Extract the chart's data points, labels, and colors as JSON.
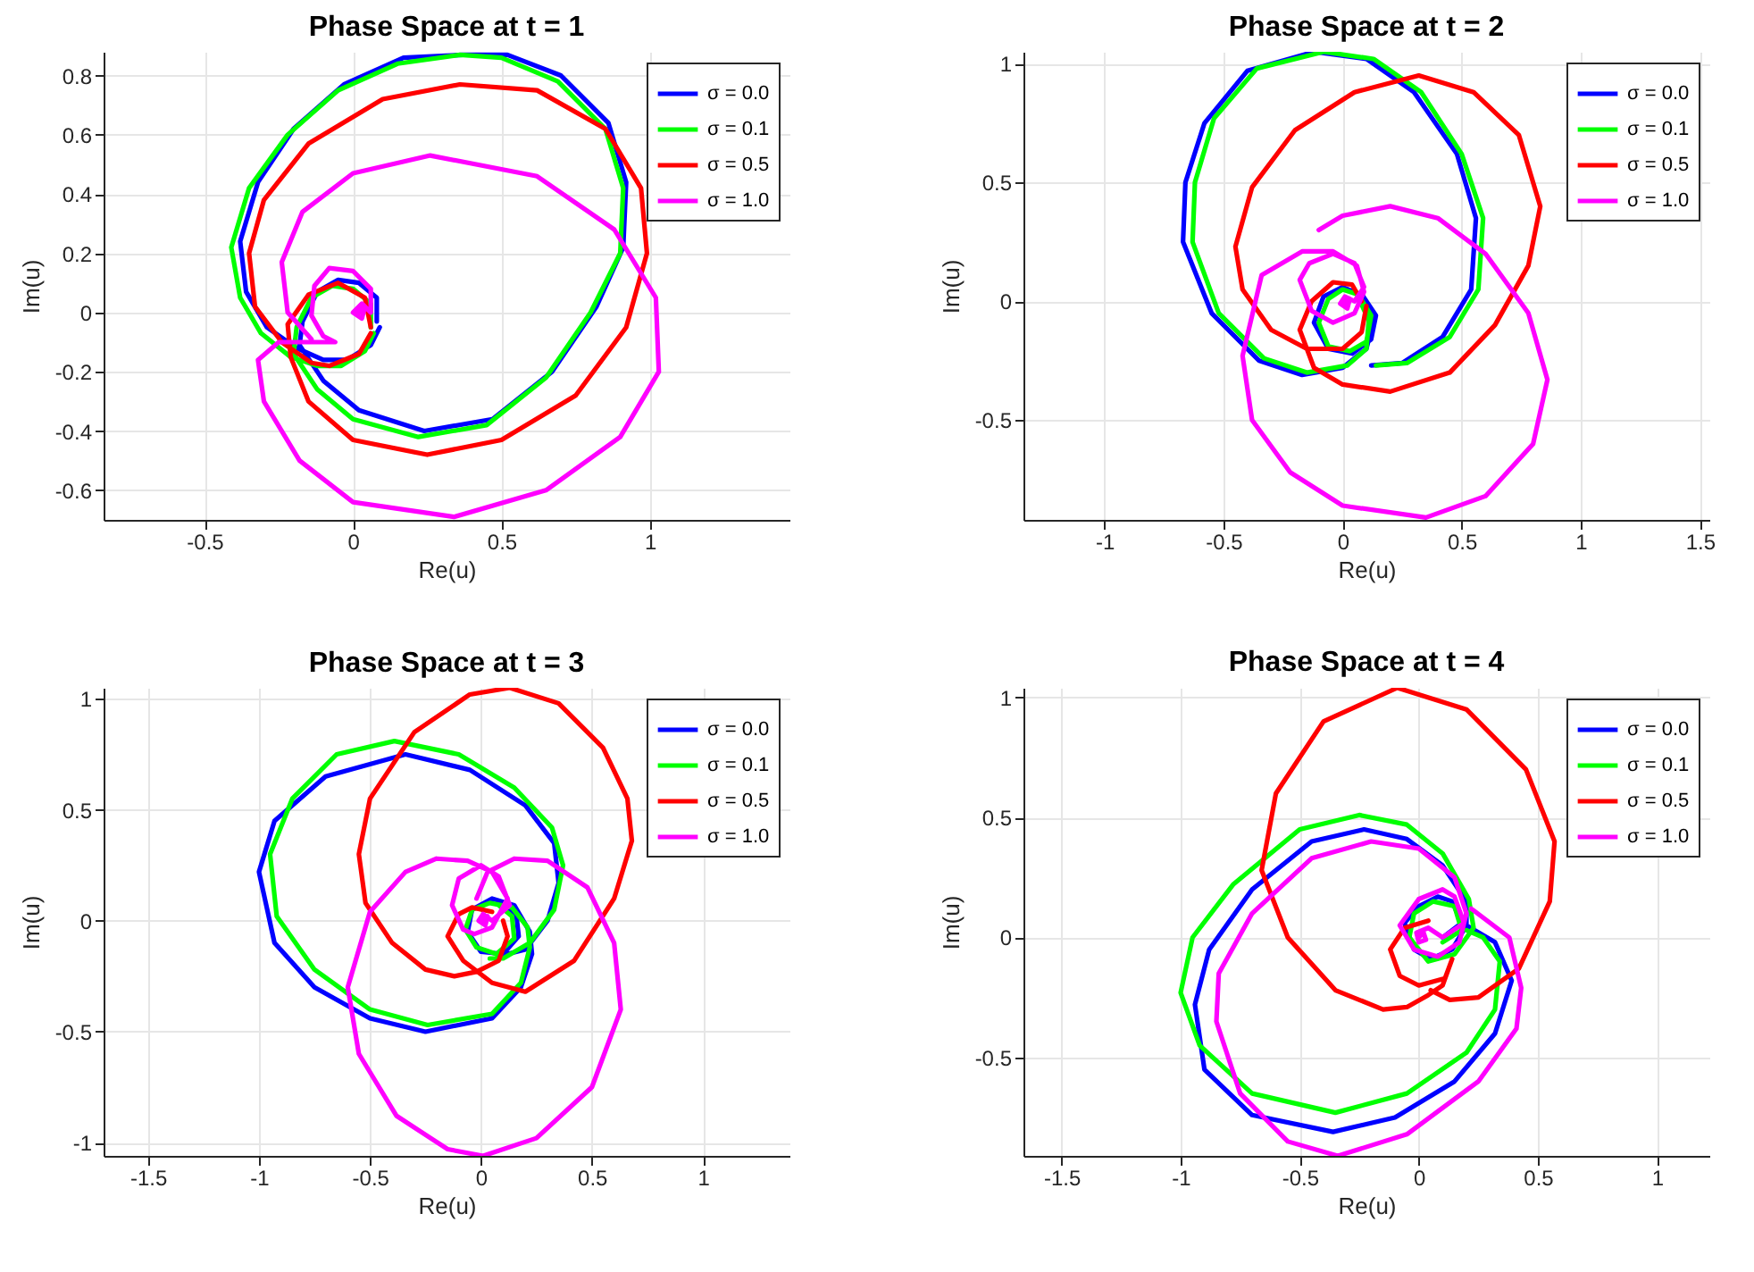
{
  "chart_data": [
    {
      "type": "line",
      "title": "Phase Space at t = 1",
      "xlabel": "Re(u)",
      "ylabel": "Im(u)",
      "xlim": [
        -0.84,
        1.47
      ],
      "ylim": [
        -0.7,
        0.88
      ],
      "xticks": [
        -0.5,
        0,
        0.5,
        1
      ],
      "yticks": [
        -0.6,
        -0.4,
        -0.2,
        0,
        0.2,
        0.4,
        0.6,
        0.8
      ],
      "grid": true,
      "legend": "top right",
      "series": [
        {
          "name": "σ = 0.0",
          "color": "#0000ff",
          "x": [
            0.08,
            0.08,
            0.02,
            -0.05,
            -0.12,
            -0.17,
            -0.18,
            -0.1,
            0.02,
            0.24,
            0.47,
            0.67,
            0.82,
            0.91,
            0.92,
            0.86,
            0.7,
            0.52,
            0.37,
            0.17,
            -0.03,
            -0.2,
            -0.32,
            -0.38,
            -0.36,
            -0.29,
            -0.19,
            -0.1,
            -0.02,
            0.06,
            0.09
          ],
          "values": [
            -0.03,
            0.05,
            0.1,
            0.11,
            0.07,
            -0.03,
            -0.11,
            -0.23,
            -0.33,
            -0.4,
            -0.36,
            -0.2,
            0.02,
            0.22,
            0.44,
            0.64,
            0.8,
            0.87,
            0.87,
            0.86,
            0.77,
            0.62,
            0.44,
            0.24,
            0.07,
            -0.05,
            -0.12,
            -0.16,
            -0.16,
            -0.11,
            -0.05
          ]
        },
        {
          "name": "σ = 0.1",
          "color": "#00ff00",
          "x": [
            0.06,
            0.06,
            0,
            -0.07,
            -0.14,
            -0.19,
            -0.2,
            -0.12,
            0,
            0.22,
            0.45,
            0.65,
            0.8,
            0.9,
            0.91,
            0.85,
            0.69,
            0.5,
            0.36,
            0.15,
            -0.05,
            -0.22,
            -0.35,
            -0.41,
            -0.38,
            -0.31,
            -0.21,
            -0.12,
            -0.04,
            0.04,
            0.07
          ],
          "values": [
            -0.05,
            0.03,
            0.08,
            0.09,
            0.05,
            -0.05,
            -0.14,
            -0.26,
            -0.36,
            -0.42,
            -0.38,
            -0.22,
            0,
            0.2,
            0.42,
            0.62,
            0.78,
            0.86,
            0.87,
            0.84,
            0.75,
            0.6,
            0.42,
            0.22,
            0.05,
            -0.07,
            -0.15,
            -0.18,
            -0.18,
            -0.13,
            -0.07
          ]
        },
        {
          "name": "σ = 0.5",
          "color": "#ff0000",
          "x": [
            0.06,
            0.04,
            -0.05,
            -0.15,
            -0.22,
            -0.21,
            -0.15,
            0,
            0.25,
            0.5,
            0.75,
            0.92,
            0.99,
            0.97,
            0.85,
            0.62,
            0.36,
            0.1,
            -0.15,
            -0.3,
            -0.35,
            -0.33,
            -0.24,
            -0.14,
            -0.08,
            0.02,
            0.06
          ],
          "values": [
            -0.05,
            0.05,
            0.1,
            0.06,
            -0.04,
            -0.15,
            -0.3,
            -0.43,
            -0.48,
            -0.43,
            -0.28,
            -0.05,
            0.2,
            0.42,
            0.62,
            0.75,
            0.77,
            0.72,
            0.57,
            0.38,
            0.2,
            0.02,
            -0.1,
            -0.17,
            -0.18,
            -0.14,
            -0.07
          ]
        },
        {
          "name": "σ = 1.0",
          "color": "#ff00ff",
          "x": [
            0.02,
            0.04,
            0.03,
            0,
            0.03,
            0.06,
            0.06,
            0,
            -0.08,
            -0.13,
            -0.14,
            -0.1,
            -0.06,
            -0.15,
            -0.25,
            -0.32,
            -0.3,
            -0.18,
            0,
            0.34,
            0.65,
            0.9,
            1.03,
            1.02,
            0.88,
            0.62,
            0.26,
            0,
            -0.17,
            -0.24,
            -0.22,
            -0.14
          ],
          "values": [
            0,
            0.02,
            -0.02,
            0,
            0.03,
            0,
            0.08,
            0.14,
            0.15,
            0.09,
            -0.01,
            -0.08,
            -0.1,
            -0.1,
            -0.1,
            -0.16,
            -0.3,
            -0.5,
            -0.64,
            -0.69,
            -0.6,
            -0.42,
            -0.2,
            0.05,
            0.28,
            0.46,
            0.53,
            0.47,
            0.34,
            0.17,
            0,
            -0.09
          ]
        }
      ]
    },
    {
      "type": "line",
      "title": "Phase Space at t = 2",
      "xlabel": "Re(u)",
      "ylabel": "Im(u)",
      "xlim": [
        -1.34,
        1.54
      ],
      "ylim": [
        -0.92,
        1.05
      ],
      "xticks": [
        -1,
        -0.5,
        0,
        0.5,
        1,
        1.5
      ],
      "yticks": [
        -0.5,
        0,
        0.5,
        1
      ],
      "grid": true,
      "legend": "top right",
      "series": [
        {
          "name": "σ = 0.0",
          "color": "#0000ff",
          "x": [
            0.08,
            0.14,
            0.12,
            0.04,
            -0.06,
            -0.12,
            -0.08,
            0,
            0.07,
            0.13,
            0.1,
            0,
            -0.17,
            -0.35,
            -0.55,
            -0.67,
            -0.66,
            -0.58,
            -0.4,
            -0.12,
            0.1,
            0.3,
            0.48,
            0.56,
            0.54,
            0.42,
            0.25,
            0.12
          ],
          "values": [
            0.03,
            -0.06,
            -0.16,
            -0.22,
            -0.2,
            -0.09,
            0.02,
            0.06,
            0.03,
            -0.08,
            -0.2,
            -0.28,
            -0.31,
            -0.25,
            -0.05,
            0.25,
            0.5,
            0.75,
            0.97,
            1.05,
            1.02,
            0.88,
            0.62,
            0.35,
            0.05,
            -0.15,
            -0.26,
            -0.27
          ]
        },
        {
          "name": "σ = 0.1",
          "color": "#00ff00",
          "x": [
            0.07,
            0.12,
            0.1,
            0.03,
            -0.06,
            -0.1,
            -0.06,
            0,
            0.06,
            0.11,
            0.1,
            0.02,
            -0.15,
            -0.33,
            -0.52,
            -0.63,
            -0.62,
            -0.54,
            -0.36,
            -0.08,
            0.13,
            0.33,
            0.5,
            0.59,
            0.57,
            0.45,
            0.27,
            0.14
          ],
          "values": [
            0.02,
            -0.06,
            -0.17,
            -0.21,
            -0.19,
            -0.09,
            0.01,
            0.05,
            0.03,
            -0.08,
            -0.2,
            -0.27,
            -0.3,
            -0.24,
            -0.05,
            0.25,
            0.5,
            0.77,
            0.98,
            1.05,
            1.02,
            0.88,
            0.62,
            0.35,
            0.05,
            -0.15,
            -0.26,
            -0.27
          ]
        },
        {
          "name": "σ = 0.5",
          "color": "#ff0000",
          "x": [
            0.1,
            0.08,
            0,
            -0.15,
            -0.3,
            -0.42,
            -0.45,
            -0.38,
            -0.2,
            0.05,
            0.32,
            0.55,
            0.74,
            0.83,
            0.78,
            0.64,
            0.45,
            0.2,
            0,
            -0.12,
            -0.18,
            -0.13,
            -0.04,
            0.04,
            0.08
          ],
          "values": [
            -0.02,
            -0.13,
            -0.2,
            -0.2,
            -0.12,
            0.05,
            0.23,
            0.48,
            0.72,
            0.88,
            0.95,
            0.88,
            0.7,
            0.4,
            0.15,
            -0.1,
            -0.3,
            -0.38,
            -0.35,
            -0.28,
            -0.12,
            0,
            0.08,
            0.07,
            0
          ]
        },
        {
          "name": "σ = 1.0",
          "color": "#ff00ff",
          "x": [
            0.01,
            0.03,
            0.02,
            -0.01,
            0.01,
            0.05,
            0.09,
            0.05,
            -0.04,
            -0.14,
            -0.18,
            -0.13,
            -0.04,
            0.05,
            0.09,
            0.06,
            -0.04,
            -0.17,
            -0.34,
            -0.42,
            -0.38,
            -0.22,
            0,
            0.35,
            0.6,
            0.8,
            0.86,
            0.78,
            0.6,
            0.4,
            0.2,
            0,
            -0.1
          ],
          "values": [
            -0.01,
            0.01,
            -0.03,
            -0.01,
            0.02,
            0,
            0.06,
            0.16,
            0.2,
            0.16,
            0.09,
            -0.04,
            -0.09,
            -0.05,
            0.04,
            0.15,
            0.21,
            0.21,
            0.11,
            -0.23,
            -0.5,
            -0.72,
            -0.86,
            -0.91,
            -0.82,
            -0.6,
            -0.33,
            -0.05,
            0.2,
            0.35,
            0.4,
            0.36,
            0.3
          ]
        }
      ]
    },
    {
      "type": "line",
      "title": "Phase Space at t = 3",
      "xlabel": "Re(u)",
      "ylabel": "Im(u)",
      "xlim": [
        -1.7,
        1.39
      ],
      "ylim": [
        -1.06,
        1.05
      ],
      "xticks": [
        -1.5,
        -1,
        -0.5,
        0,
        0.5,
        1
      ],
      "yticks": [
        -1,
        -0.5,
        0,
        0.5,
        1
      ],
      "grid": true,
      "legend": "top right",
      "series": [
        {
          "name": "σ = 0.0",
          "color": "#0000ff",
          "x": [
            0.1,
            0.16,
            0.17,
            0.1,
            0,
            -0.06,
            -0.04,
            0.05,
            0.15,
            0.22,
            0.23,
            0.18,
            0.05,
            -0.25,
            -0.5,
            -0.75,
            -0.93,
            -1,
            -0.93,
            -0.7,
            -0.34,
            -0.05,
            0.2,
            0.33,
            0.35,
            0.3,
            0.2,
            0.08
          ],
          "values": [
            0.08,
            0.02,
            -0.07,
            -0.15,
            -0.14,
            -0.05,
            0.05,
            0.1,
            0.07,
            -0.05,
            -0.15,
            -0.3,
            -0.44,
            -0.5,
            -0.44,
            -0.3,
            -0.1,
            0.22,
            0.45,
            0.65,
            0.75,
            0.68,
            0.52,
            0.35,
            0.17,
            0,
            -0.13,
            -0.16
          ]
        },
        {
          "name": "σ = 0.1",
          "color": "#00ff00",
          "x": [
            0.08,
            0.14,
            0.15,
            0.07,
            -0.02,
            -0.07,
            -0.04,
            0.04,
            0.14,
            0.21,
            0.22,
            0.18,
            0.05,
            -0.24,
            -0.5,
            -0.75,
            -0.92,
            -0.95,
            -0.85,
            -0.65,
            -0.39,
            -0.1,
            0.15,
            0.32,
            0.37,
            0.33,
            0.22,
            0.1,
            0.04
          ],
          "values": [
            0.07,
            0.02,
            -0.08,
            -0.15,
            -0.12,
            -0.04,
            0.05,
            0.08,
            0.06,
            -0.03,
            -0.12,
            -0.28,
            -0.42,
            -0.47,
            -0.4,
            -0.22,
            0.02,
            0.3,
            0.55,
            0.75,
            0.81,
            0.75,
            0.6,
            0.42,
            0.25,
            0.05,
            -0.1,
            -0.17,
            -0.17
          ]
        },
        {
          "name": "σ = 0.5",
          "color": "#ff0000",
          "x": [
            0.1,
            0.12,
            0.08,
            -0.02,
            -0.12,
            -0.25,
            -0.4,
            -0.52,
            -0.55,
            -0.5,
            -0.3,
            -0.05,
            0.13,
            0.35,
            0.55,
            0.66,
            0.68,
            0.6,
            0.42,
            0.2,
            0.05,
            -0.08,
            -0.15,
            -0.1,
            -0.04,
            0.05
          ],
          "values": [
            0,
            -0.07,
            -0.18,
            -0.23,
            -0.25,
            -0.22,
            -0.1,
            0.08,
            0.3,
            0.55,
            0.85,
            1.02,
            1.05,
            0.98,
            0.78,
            0.55,
            0.36,
            0.1,
            -0.18,
            -0.32,
            -0.28,
            -0.18,
            -0.07,
            0.03,
            0.06,
            0.04
          ]
        },
        {
          "name": "σ = 1.0",
          "color": "#ff00ff",
          "x": [
            0.01,
            0.03,
            0.02,
            -0.01,
            0.01,
            0.05,
            0.13,
            0.08,
            0,
            -0.1,
            -0.13,
            -0.08,
            -0.03,
            0.05,
            0.12,
            0.05,
            -0.06,
            -0.2,
            -0.34,
            -0.5,
            -0.6,
            -0.55,
            -0.38,
            -0.15,
            0.01,
            0.25,
            0.5,
            0.63,
            0.6,
            0.48,
            0.3,
            0.15,
            0.03,
            -0.02
          ],
          "values": [
            0,
            0.02,
            -0.02,
            0,
            0.03,
            0,
            0.07,
            0.2,
            0.25,
            0.19,
            0.07,
            -0.04,
            -0.06,
            -0.03,
            0.1,
            0.22,
            0.27,
            0.28,
            0.22,
            0.04,
            -0.3,
            -0.6,
            -0.88,
            -1.03,
            -1.06,
            -0.98,
            -0.75,
            -0.4,
            -0.1,
            0.15,
            0.27,
            0.28,
            0.22,
            0.1
          ]
        }
      ]
    },
    {
      "type": "line",
      "title": "Phase Space at t = 4",
      "xlabel": "Re(u)",
      "ylabel": "Im(u)",
      "xlim": [
        -1.66,
        1.22
      ],
      "ylim": [
        -0.91,
        1.04
      ],
      "xticks": [
        -1.5,
        -1,
        -0.5,
        0,
        0.5,
        1
      ],
      "yticks": [
        -0.5,
        0,
        0.5,
        1
      ],
      "grid": true,
      "legend": "top right",
      "series": [
        {
          "name": "σ = 0.0",
          "color": "#0000ff",
          "x": [
            0.1,
            0.18,
            0.14,
            0.08,
            0,
            -0.06,
            -0.02,
            0.05,
            0.14,
            0.2,
            0.2,
            0.1,
            -0.05,
            -0.23,
            -0.45,
            -0.7,
            -0.88,
            -0.94,
            -0.9,
            -0.7,
            -0.36,
            -0.1,
            0.15,
            0.32,
            0.39,
            0.32,
            0.2
          ],
          "values": [
            0,
            0.06,
            0.15,
            0.17,
            0.13,
            0.06,
            -0.05,
            -0.09,
            -0.05,
            0.05,
            0.15,
            0.3,
            0.41,
            0.45,
            0.4,
            0.2,
            -0.05,
            -0.28,
            -0.55,
            -0.74,
            -0.81,
            -0.75,
            -0.6,
            -0.4,
            -0.18,
            -0.02,
            0.05
          ]
        },
        {
          "name": "σ = 0.1",
          "color": "#00ff00",
          "x": [
            0.1,
            0.18,
            0.15,
            0.06,
            -0.02,
            -0.04,
            0.04,
            0.15,
            0.23,
            0.21,
            0.1,
            -0.05,
            -0.25,
            -0.5,
            -0.78,
            -0.95,
            -1,
            -0.92,
            -0.7,
            -0.35,
            -0.05,
            0.2,
            0.32,
            0.34,
            0.27,
            0.2
          ],
          "values": [
            -0.02,
            0.03,
            0.13,
            0.15,
            0.1,
            0,
            -0.1,
            -0.07,
            0.04,
            0.16,
            0.35,
            0.47,
            0.51,
            0.45,
            0.22,
            0,
            -0.23,
            -0.45,
            -0.65,
            -0.73,
            -0.65,
            -0.48,
            -0.3,
            -0.1,
            0,
            0.03
          ]
        },
        {
          "name": "σ = 0.5",
          "color": "#ff0000",
          "x": [
            0.04,
            -0.06,
            -0.12,
            -0.08,
            0,
            0.11,
            0.14,
            0.1,
            0.04,
            -0.05,
            -0.15,
            -0.35,
            -0.55,
            -0.66,
            -0.6,
            -0.4,
            -0.09,
            0.2,
            0.45,
            0.57,
            0.55,
            0.42,
            0.25,
            0.13,
            0.05
          ],
          "values": [
            0.07,
            0.04,
            -0.05,
            -0.16,
            -0.2,
            -0.17,
            -0.09,
            -0.2,
            -0.24,
            -0.29,
            -0.3,
            -0.22,
            0,
            0.28,
            0.6,
            0.9,
            1.04,
            0.95,
            0.7,
            0.4,
            0.15,
            -0.13,
            -0.25,
            -0.26,
            -0.22
          ]
        },
        {
          "name": "σ = 1.0",
          "color": "#ff00ff",
          "x": [
            0,
            0.02,
            0.03,
            0,
            -0.01,
            0.04,
            0.1,
            0.19,
            0.15,
            0.1,
            0,
            -0.08,
            -0.02,
            0.08,
            0.17,
            0.2,
            0.15,
            0,
            -0.2,
            -0.45,
            -0.7,
            -0.84,
            -0.85,
            -0.75,
            -0.55,
            -0.34,
            -0.05,
            0.25,
            0.41,
            0.43,
            0.38,
            0.22
          ],
          "values": [
            0,
            0.02,
            -0.01,
            -0.02,
            0.02,
            0.04,
            0,
            0.06,
            0.17,
            0.2,
            0.16,
            0.05,
            -0.05,
            -0.08,
            -0.02,
            0.1,
            0.25,
            0.37,
            0.4,
            0.33,
            0.1,
            -0.15,
            -0.35,
            -0.65,
            -0.85,
            -0.91,
            -0.82,
            -0.6,
            -0.38,
            -0.21,
            0,
            0.12
          ]
        }
      ]
    }
  ]
}
